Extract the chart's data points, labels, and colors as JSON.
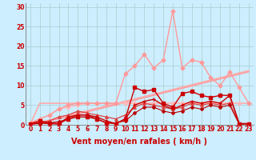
{
  "background_color": "#cceeff",
  "grid_color": "#aacccc",
  "xlabel": "Vent moyen/en rafales ( km/h )",
  "x_ticks": [
    0,
    1,
    2,
    3,
    4,
    5,
    6,
    7,
    8,
    9,
    10,
    11,
    12,
    13,
    14,
    15,
    16,
    17,
    18,
    19,
    20,
    21,
    22,
    23
  ],
  "ylim": [
    0,
    31
  ],
  "y_ticks": [
    0,
    5,
    10,
    15,
    20,
    25,
    30
  ],
  "lines": [
    {
      "x": [
        0,
        1,
        2,
        3,
        4,
        5,
        6,
        7,
        8,
        9,
        10,
        11,
        12,
        13,
        14,
        15,
        16,
        17,
        18,
        19,
        20,
        21,
        22,
        23
      ],
      "y": [
        0.0,
        0.6,
        1.2,
        1.8,
        2.4,
        3.0,
        3.6,
        4.2,
        4.8,
        5.4,
        6.0,
        6.6,
        7.2,
        7.8,
        8.4,
        9.0,
        9.6,
        10.2,
        10.8,
        11.4,
        12.0,
        12.6,
        13.2,
        13.8
      ],
      "color": "#ffaaaa",
      "marker": null,
      "linewidth": 1.2,
      "zorder": 2
    },
    {
      "x": [
        0,
        1,
        2,
        3,
        4,
        5,
        6,
        7,
        8,
        9,
        10,
        11,
        12,
        13,
        14,
        15,
        16,
        17,
        18,
        19,
        20,
        21,
        22,
        23
      ],
      "y": [
        0.2,
        5.5,
        5.5,
        5.5,
        5.5,
        5.5,
        5.5,
        5.5,
        5.5,
        5.5,
        5.5,
        5.5,
        5.5,
        5.5,
        5.5,
        5.5,
        5.5,
        5.5,
        5.5,
        5.5,
        5.5,
        5.5,
        5.5,
        5.5
      ],
      "color": "#ffaaaa",
      "marker": null,
      "linewidth": 1.2,
      "zorder": 2
    },
    {
      "x": [
        0,
        1,
        2,
        3,
        4,
        5,
        6,
        7,
        8,
        9,
        10,
        11,
        12,
        13,
        14,
        15,
        16,
        17,
        18,
        19,
        20,
        21,
        22,
        23
      ],
      "y": [
        0.0,
        0.5,
        1.0,
        1.5,
        2.1,
        2.7,
        3.3,
        3.9,
        4.5,
        5.1,
        5.7,
        6.3,
        6.9,
        7.5,
        8.1,
        8.7,
        9.3,
        9.9,
        10.5,
        11.1,
        11.7,
        12.3,
        12.9,
        13.5
      ],
      "color": "#ff9999",
      "marker": null,
      "linewidth": 1.0,
      "zorder": 2
    },
    {
      "x": [
        0,
        1,
        2,
        3,
        4,
        5,
        6,
        7,
        8,
        9,
        10,
        11,
        12,
        13,
        14,
        15,
        16,
        17,
        18,
        19,
        20,
        21,
        22,
        23
      ],
      "y": [
        0.5,
        1.5,
        2.5,
        4.0,
        4.5,
        5.0,
        5.5,
        5.5,
        5.5,
        5.5,
        5.5,
        5.5,
        5.5,
        5.5,
        5.5,
        5.5,
        5.5,
        5.5,
        5.5,
        5.5,
        5.5,
        5.5,
        5.5,
        5.5
      ],
      "color": "#ffbbbb",
      "marker": "D",
      "markersize": 2.5,
      "linewidth": 1.0,
      "zorder": 3
    },
    {
      "x": [
        0,
        1,
        2,
        3,
        4,
        5,
        6,
        7,
        8,
        9,
        10,
        11,
        12,
        13,
        14,
        15,
        16,
        17,
        18,
        19,
        20,
        21,
        22,
        23
      ],
      "y": [
        0.5,
        1.5,
        2.5,
        4.0,
        5.0,
        5.5,
        5.5,
        5.5,
        5.5,
        5.5,
        13.0,
        15.0,
        18.0,
        14.5,
        16.5,
        29.0,
        14.5,
        16.5,
        16.0,
        12.0,
        10.0,
        13.5,
        9.5,
        5.5
      ],
      "color": "#ff9999",
      "marker": "D",
      "markersize": 2.5,
      "linewidth": 1.0,
      "zorder": 3
    },
    {
      "x": [
        0,
        1,
        2,
        3,
        4,
        5,
        6,
        7,
        8,
        9,
        10,
        11,
        12,
        13,
        14,
        15,
        16,
        17,
        18,
        19,
        20,
        21,
        22,
        23
      ],
      "y": [
        0.3,
        0.5,
        1.0,
        2.0,
        2.5,
        3.5,
        3.0,
        2.5,
        2.0,
        1.5,
        2.5,
        4.5,
        5.5,
        5.0,
        4.5,
        4.0,
        4.5,
        5.5,
        5.0,
        5.5,
        5.0,
        5.5,
        0.2,
        0.3
      ],
      "color": "#dd4444",
      "marker": "^",
      "markersize": 2.5,
      "linewidth": 0.9,
      "zorder": 4
    },
    {
      "x": [
        0,
        1,
        2,
        3,
        4,
        5,
        6,
        7,
        8,
        9,
        10,
        11,
        12,
        13,
        14,
        15,
        16,
        17,
        18,
        19,
        20,
        21,
        22,
        23
      ],
      "y": [
        0.3,
        1.0,
        0.5,
        0.3,
        1.5,
        2.0,
        2.0,
        1.5,
        0.5,
        0.3,
        1.5,
        9.5,
        8.5,
        9.0,
        5.5,
        4.5,
        8.0,
        8.5,
        7.5,
        7.0,
        7.5,
        7.5,
        0.3,
        0.3
      ],
      "color": "#cc0000",
      "marker": "s",
      "markersize": 2.5,
      "linewidth": 1.0,
      "zorder": 5
    },
    {
      "x": [
        0,
        1,
        2,
        3,
        4,
        5,
        6,
        7,
        8,
        9,
        10,
        11,
        12,
        13,
        14,
        15,
        16,
        17,
        18,
        19,
        20,
        21,
        22,
        23
      ],
      "y": [
        0.3,
        0.5,
        0.3,
        0.2,
        2.0,
        2.5,
        2.5,
        2.0,
        1.0,
        0.3,
        1.5,
        5.0,
        6.0,
        6.5,
        5.0,
        4.0,
        5.0,
        6.0,
        5.5,
        6.0,
        5.5,
        7.5,
        0.3,
        0.3
      ],
      "color": "#cc0000",
      "marker": "+",
      "markersize": 3.5,
      "linewidth": 1.0,
      "zorder": 5
    },
    {
      "x": [
        0,
        1,
        2,
        3,
        4,
        5,
        6,
        7,
        8,
        9,
        10,
        11,
        12,
        13,
        14,
        15,
        16,
        17,
        18,
        19,
        20,
        21,
        22,
        23
      ],
      "y": [
        0.2,
        0.3,
        0.5,
        0.8,
        1.5,
        2.5,
        2.5,
        1.5,
        0.5,
        0.5,
        1.0,
        3.0,
        4.5,
        4.5,
        3.5,
        3.0,
        3.5,
        4.5,
        4.0,
        5.0,
        4.5,
        5.0,
        0.2,
        0.2
      ],
      "color": "#bb0000",
      "marker": "D",
      "markersize": 2.0,
      "linewidth": 0.8,
      "zorder": 4
    }
  ],
  "tick_fontsize": 5.5,
  "label_fontsize": 7.0,
  "tick_color": "#cc0000",
  "label_color": "#cc0000"
}
